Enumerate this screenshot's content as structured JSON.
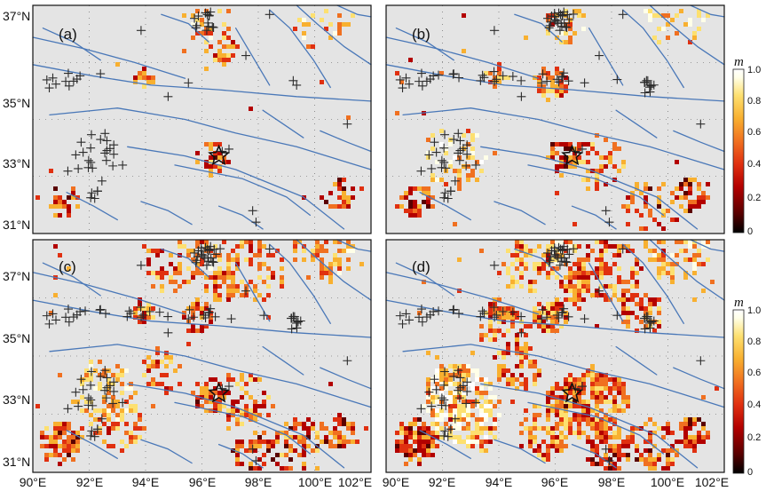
{
  "figure": {
    "panels": [
      {
        "label": "(a)"
      },
      {
        "label": "(b)"
      },
      {
        "label": "(c)"
      },
      {
        "label": "(d)"
      }
    ],
    "lat_ticks": [
      "37°N",
      "35°N",
      "33°N",
      "31°N"
    ],
    "lon_ticks": [
      "90°E",
      "92°E",
      "94°E",
      "96°E",
      "98°E",
      "100°E",
      "102°E"
    ],
    "colorbar": {
      "title": "m",
      "ticks": [
        "1.0",
        "0.8",
        "0.6",
        "0.4",
        "0.2",
        "0"
      ]
    },
    "colors": {
      "background": "#e4e4e4",
      "faults": "#4a78b8",
      "markers": "#2b2b2b",
      "colormap": [
        "#000000",
        "#5a0000",
        "#b30000",
        "#e03010",
        "#f07020",
        "#f8b030",
        "#fde070",
        "#ffffe8",
        "#ffffff"
      ]
    },
    "icons": {
      "epicenter": "star-icon",
      "seismicity": "plus-icon"
    }
  }
}
